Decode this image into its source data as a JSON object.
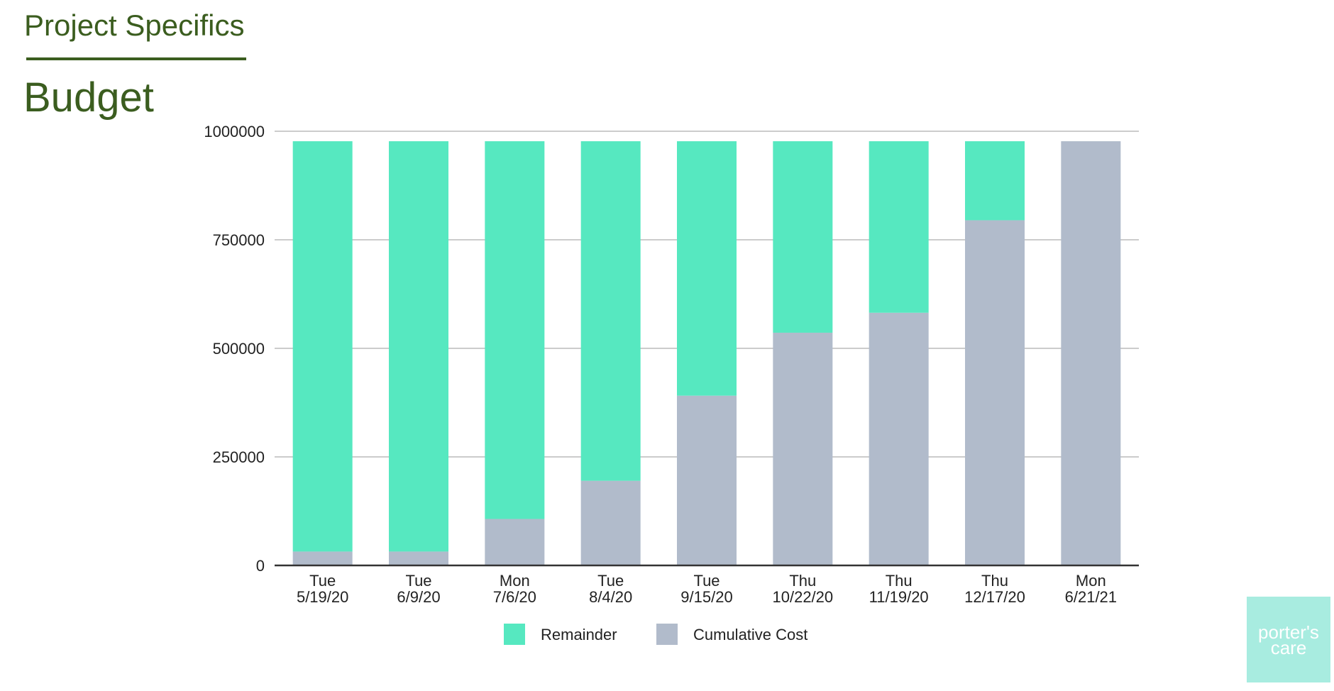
{
  "header": {
    "section": "Project Specifics",
    "title": "Budget"
  },
  "logo": {
    "line1": "porter's",
    "line2": "care"
  },
  "colors": {
    "remainder": "#56e8c0",
    "cumulative": "#b1bbcb",
    "heading": "#3b5d1f",
    "grid": "#cccccc",
    "axis": "#333333"
  },
  "chart_data": {
    "type": "bar",
    "stacked": true,
    "title": "",
    "xlabel": "",
    "ylabel": "",
    "ylim": [
      0,
      1000000
    ],
    "yticks": [
      0,
      250000,
      500000,
      750000,
      1000000
    ],
    "categories": [
      [
        "Tue",
        "5/19/20"
      ],
      [
        "Tue",
        "6/9/20"
      ],
      [
        "Mon",
        "7/6/20"
      ],
      [
        "Tue",
        "8/4/20"
      ],
      [
        "Tue",
        "9/15/20"
      ],
      [
        "Thu",
        "10/22/20"
      ],
      [
        "Thu",
        "11/19/20"
      ],
      [
        "Thu",
        "12/17/20"
      ],
      [
        "Mon",
        "6/21/21"
      ]
    ],
    "series": [
      {
        "name": "Cumulative Cost",
        "values": [
          32000,
          32000,
          107000,
          195000,
          391000,
          536000,
          582000,
          795000,
          977000
        ]
      },
      {
        "name": "Remainder",
        "values": [
          945000,
          945000,
          870000,
          782000,
          586000,
          441000,
          395000,
          182000,
          0
        ]
      }
    ],
    "legend": [
      "Remainder",
      "Cumulative Cost"
    ],
    "legend_position": "bottom",
    "grid": true
  }
}
